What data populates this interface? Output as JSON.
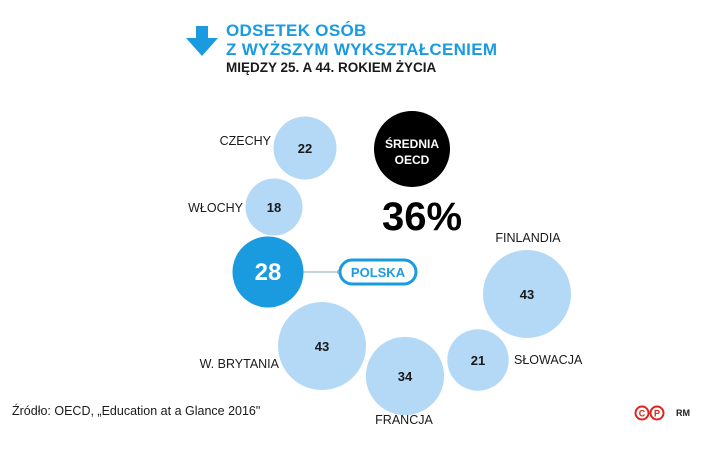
{
  "header": {
    "title_line1": "ODSETEK OSÓB",
    "title_line2": "Z WYŻSZYM WYKSZTAŁCENIEM",
    "subtitle": "MIĘDZY 25. A 44. ROKIEM ŻYCIA",
    "icon": "arrow-down-icon"
  },
  "chart_data": {
    "type": "bubble",
    "categories": [
      "CZECHY",
      "WŁOCHY",
      "POLSKA",
      "W. BRYTANIA",
      "FRANCJA",
      "SŁOWACJA",
      "FINLANDIA"
    ],
    "values": [
      22,
      18,
      28,
      43,
      34,
      21,
      43
    ],
    "highlight": "POLSKA",
    "average": {
      "label_line1": "ŚREDNIA",
      "label_line2": "OECD",
      "value": "36%"
    },
    "colors": {
      "bubble": "#b3d9f7",
      "highlight": "#1a9be0",
      "average": "#000000",
      "text": "#1a1a1a"
    }
  },
  "footer": {
    "source": "Źródło: OECD, „Education at a Glance 2016\"",
    "initials": "RM",
    "logo_icon": "cp-logo-icon"
  }
}
